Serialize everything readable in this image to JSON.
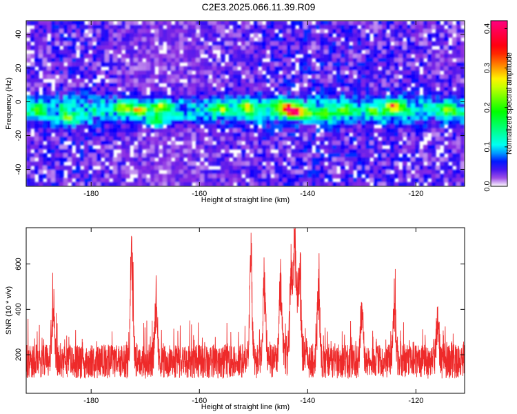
{
  "title": "C2E3.2025.066.11.39.R09",
  "chart_data": [
    {
      "type": "heatmap",
      "xlabel": "Height of straight line (km)",
      "ylabel": "Frequency (Hz)",
      "xlim": [
        -192,
        -111
      ],
      "ylim": [
        -50,
        48
      ],
      "xticks": [
        -180,
        -160,
        -140,
        -120
      ],
      "yticks": [
        -40,
        -20,
        0,
        20,
        40
      ],
      "colorbar": {
        "label": "Normalized spectral amplitude",
        "range": [
          0,
          0.42
        ],
        "ticks": [
          "0.0",
          "0.1",
          "0.2",
          "0.3",
          "0.4"
        ],
        "tick_values": [
          0,
          0.1,
          0.2,
          0.3,
          0.4
        ],
        "colormap": [
          "#ffffff",
          "#8a2be2",
          "#0000ff",
          "#00ffff",
          "#00ff00",
          "#ffff00",
          "#ff0000",
          "#ff0080"
        ]
      },
      "hotspots": [
        {
          "x": -190,
          "y": -5,
          "amp": 0.13
        },
        {
          "x": -184,
          "y": -10,
          "amp": 0.14
        },
        {
          "x": -174,
          "y": -3,
          "amp": 0.18
        },
        {
          "x": -171,
          "y": -5,
          "amp": 0.17
        },
        {
          "x": -167,
          "y": -3,
          "amp": 0.19
        },
        {
          "x": -168,
          "y": -11,
          "amp": 0.15
        },
        {
          "x": -156,
          "y": -4,
          "amp": 0.14
        },
        {
          "x": -151,
          "y": -3,
          "amp": 0.17
        },
        {
          "x": -145,
          "y": -2,
          "amp": 0.16
        },
        {
          "x": -143,
          "y": -5,
          "amp": 0.35
        },
        {
          "x": -141,
          "y": -7,
          "amp": 0.2
        },
        {
          "x": -137,
          "y": -8,
          "amp": 0.14
        },
        {
          "x": -133,
          "y": -5,
          "amp": 0.13
        },
        {
          "x": -128,
          "y": -6,
          "amp": 0.12
        },
        {
          "x": -124,
          "y": -3,
          "amp": 0.26
        },
        {
          "x": -114,
          "y": -5,
          "amp": 0.15
        }
      ]
    },
    {
      "type": "line",
      "xlabel": "Height of straight line (km)",
      "ylabel": "SNR (10 * v/v)",
      "xlim": [
        -192,
        -111
      ],
      "ylim": [
        30,
        760
      ],
      "xticks": [
        -180,
        -160,
        -140,
        -120
      ],
      "yticks": [
        200,
        400,
        600
      ],
      "color": "#ee2a2a",
      "baseline": 170,
      "peaks": [
        {
          "x": -187,
          "y": 490
        },
        {
          "x": -172.5,
          "y": 730
        },
        {
          "x": -168,
          "y": 470
        },
        {
          "x": -150.5,
          "y": 685
        },
        {
          "x": -148,
          "y": 610
        },
        {
          "x": -145,
          "y": 540
        },
        {
          "x": -143,
          "y": 600
        },
        {
          "x": -142.3,
          "y": 760
        },
        {
          "x": -141.5,
          "y": 640
        },
        {
          "x": -138,
          "y": 520
        },
        {
          "x": -130,
          "y": 430
        },
        {
          "x": -124,
          "y": 470
        },
        {
          "x": -116,
          "y": 400
        }
      ]
    }
  ]
}
